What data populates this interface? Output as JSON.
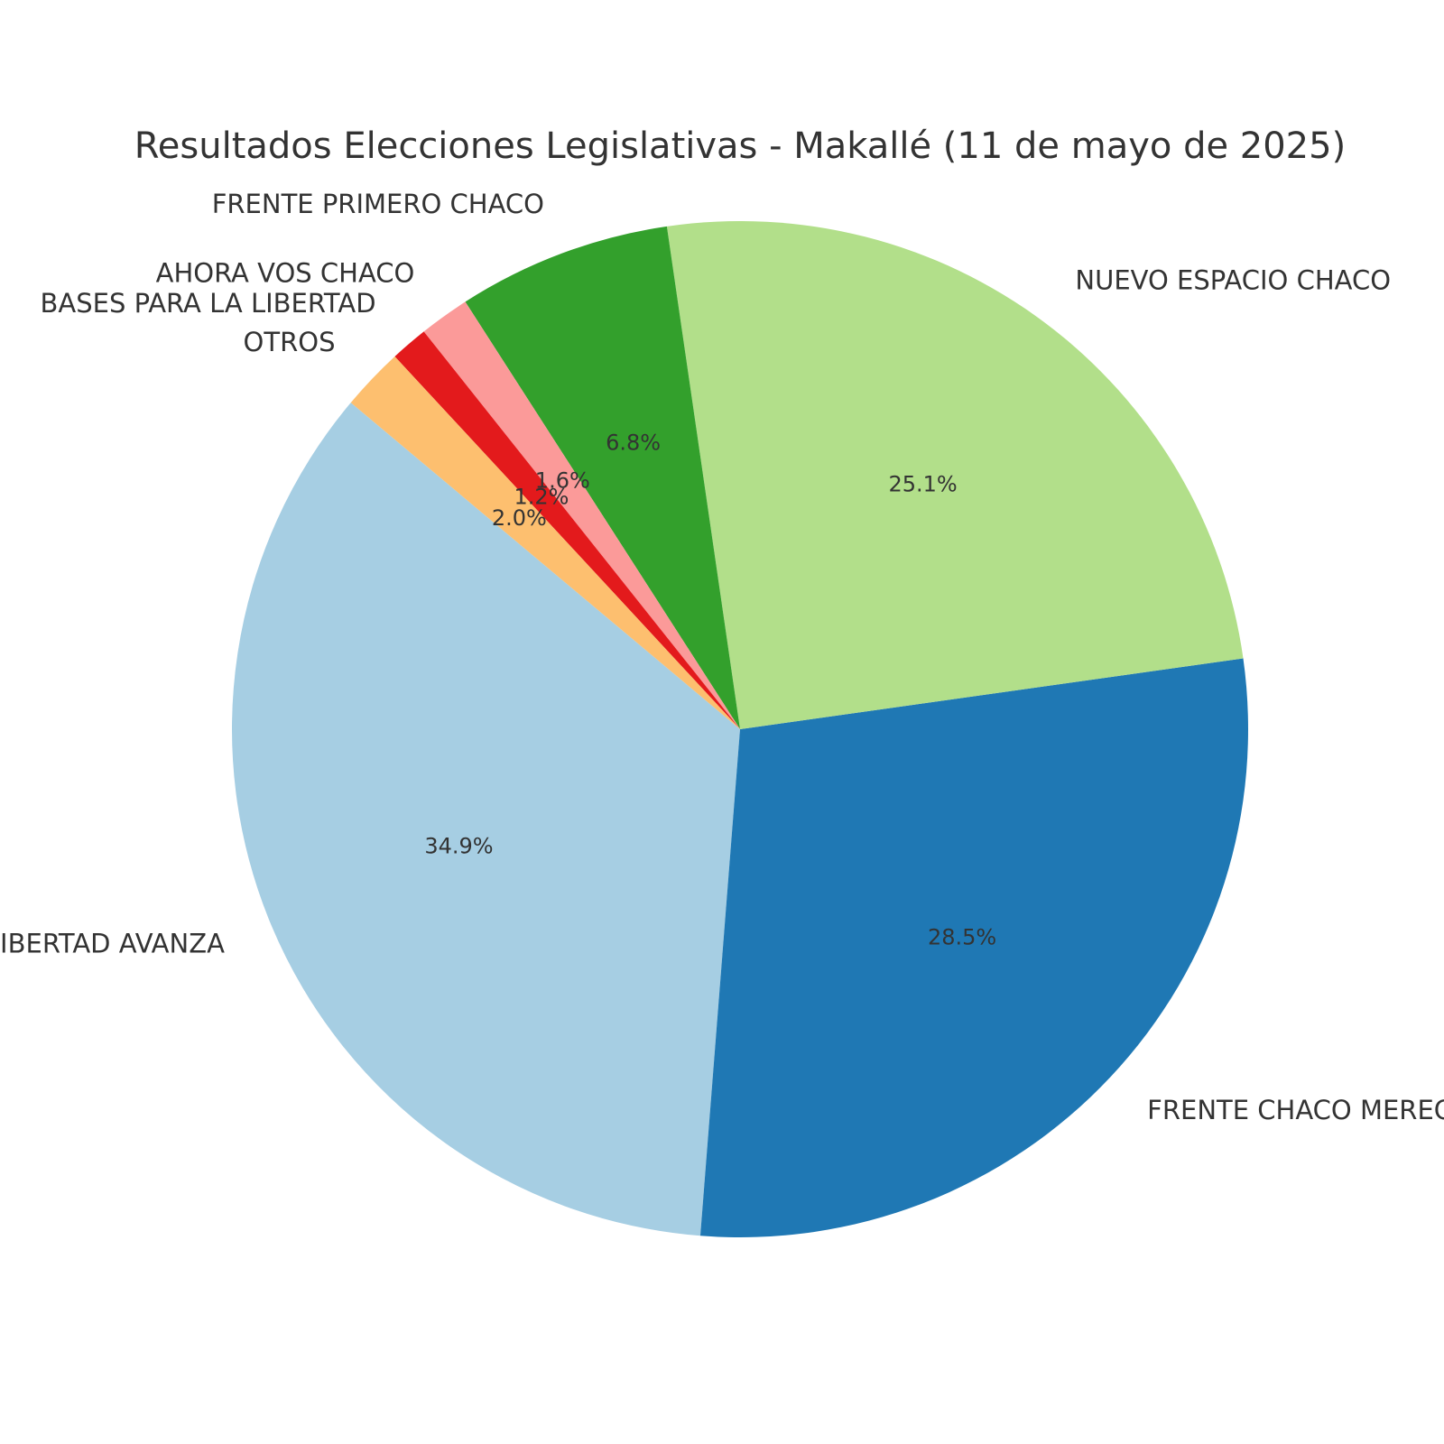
{
  "chart_data": {
    "type": "pie",
    "title": "Resultados Elecciones Legislativas - Makallé (11 de mayo de 2025)",
    "categories": [
      "LA LIBERTAD AVANZA",
      "FRENTE CHACO MERECE MÁS",
      "NUEVO ESPACIO CHACO",
      "FRENTE PRIMERO CHACO",
      "AHORA VOS CHACO",
      "BASES PARA LA LIBERTAD",
      "OTROS"
    ],
    "values": [
      34.9,
      28.5,
      25.1,
      6.8,
      1.6,
      1.2,
      2.0
    ],
    "percent_labels": [
      "34.9%",
      "28.5%",
      "25.1%",
      "6.8%",
      "1.6%",
      "1.2%",
      "2.0%"
    ],
    "colors": [
      "#a6cee3",
      "#1f78b4",
      "#b2df8a",
      "#33a02c",
      "#fb9a99",
      "#e31a1c",
      "#fdbf6f"
    ],
    "start_angle_deg": 140,
    "direction": "counterclockwise",
    "legend": "none"
  }
}
